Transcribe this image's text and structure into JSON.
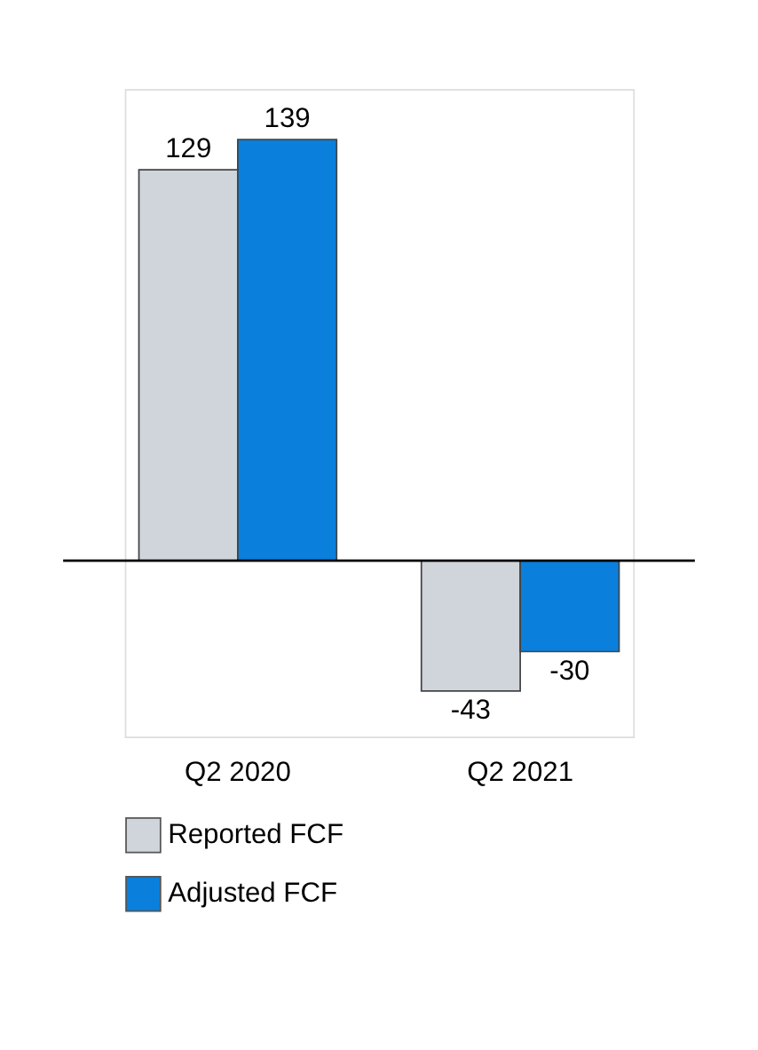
{
  "chart_data": {
    "type": "bar",
    "categories": [
      "Q2 2020",
      "Q2 2021"
    ],
    "series": [
      {
        "name": "Reported FCF",
        "color": "#d0d5dc",
        "values": [
          129,
          -43
        ]
      },
      {
        "name": "Adjusted FCF",
        "color": "#0a7fdc",
        "values": [
          139,
          -30
        ]
      }
    ],
    "data_labels": true,
    "legend": "bottom left"
  }
}
